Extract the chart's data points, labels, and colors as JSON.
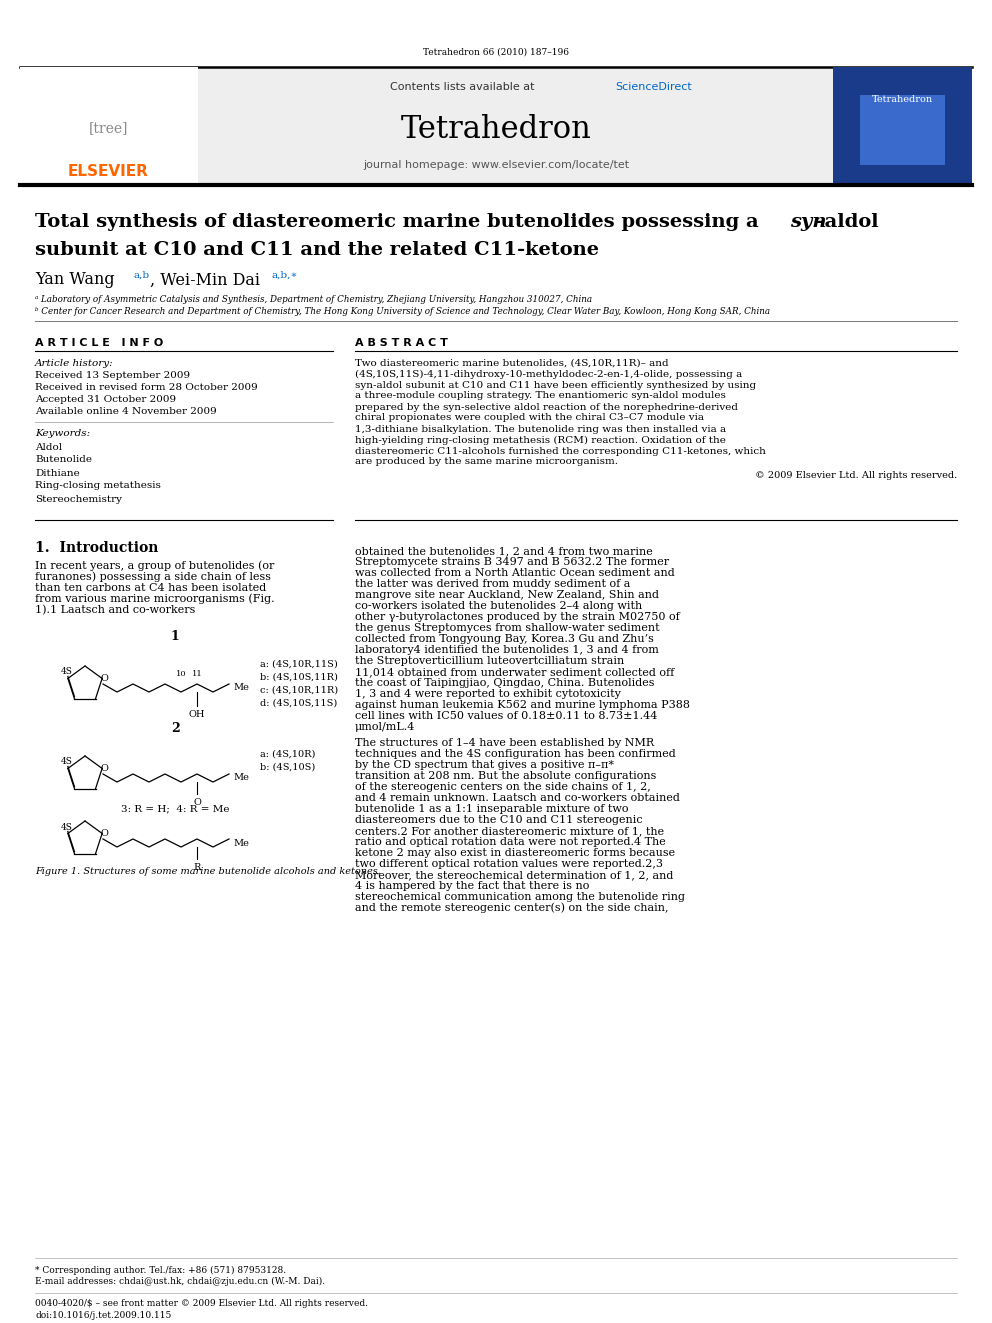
{
  "page_width": 9.92,
  "page_height": 13.23,
  "bg_color": "#ffffff",
  "journal_cite": "Tetrahedron 66 (2010) 187–196",
  "header_bg": "#eeeeee",
  "sciencedirect_color": "#0066cc",
  "journal_name": "Tetrahedron",
  "journal_homepage": "journal homepage: www.elsevier.com/locate/tet",
  "title_line1": "Total synthesis of diastereomeric marine butenolides possessing a ",
  "title_italic": "syn",
  "title_line1b": "–aldol",
  "title_line2": "subunit at C10 and C11 and the related C11-ketone",
  "affil_a": "ᵃ Laboratory of Asymmetric Catalysis and Synthesis, Department of Chemistry, Zhejiang University, Hangzhou 310027, China",
  "affil_b": "ᵇ Center for Cancer Research and Department of Chemistry, The Hong Kong University of Science and Technology, Clear Water Bay, Kowloon, Hong Kong SAR, China",
  "article_info_title": "A R T I C L E   I N F O",
  "article_history_title": "Article history:",
  "received": "Received 13 September 2009",
  "revised": "Received in revised form 28 October 2009",
  "accepted": "Accepted 31 October 2009",
  "available": "Available online 4 November 2009",
  "keywords_title": "Keywords:",
  "keywords": [
    "Aldol",
    "Butenolide",
    "Dithiane",
    "Ring-closing metathesis",
    "Stereochemistry"
  ],
  "abstract_title": "A B S T R A C T",
  "abstract_text": "Two diastereomeric marine butenolides, (4S,10R,11R)– and (4S,10S,11S)-4,11-dihydroxy-10-methyldodec-2-en-1,4-olide, possessing a syn-aldol subunit at C10 and C11 have been efficiently synthesized by using a three-module coupling strategy. The enantiomeric syn-aldol modules prepared by the syn-selective aldol reaction of the norephedrine-derived chiral propionates were coupled with the chiral C3–C7 module via 1,3-dithiane bisalkylation. The butenolide ring was then installed via a high-yielding ring-closing metathesis (RCM) reaction. Oxidation of the diastereomeric C11-alcohols furnished the corresponding C11-ketones, which are produced by the same marine microorganism.",
  "copyright": "© 2009 Elsevier Ltd. All rights reserved.",
  "intro_title": "1.  Introduction",
  "intro_para": "    In recent years, a group of butenolides (or furanones) possessing a side chain of less than ten carbons at C4 has been isolated from various marine microorganisms (Fig. 1).1 Laatsch and co-workers",
  "right_col_para1": "obtained the butenolides 1, 2 and 4 from two marine Streptomycete strains B 3497 and B 5632.2 The former was collected from a North Atlantic Ocean sediment and the latter was derived from muddy sediment of a mangrove site near Auckland, New Zealand, Shin and co-workers isolated the butenolides 2–4 along with other γ-butyrolactones produced by the strain M02750 of the genus Streptomyces from shallow-water sediment collected from Tongyoung Bay, Korea.3 Gu and Zhu’s laboratory4 identified the butenolides 1, 3 and 4 from the Streptoverticillium luteovertcilliatum strain 11,014 obtained from underwater sediment collected off the coast of Taipingjiao, Qingdao, China. Butenolides 1, 3 and 4 were reported to exhibit cytotoxicity against human leukemia K562 and murine lymphoma P388 cell lines with IC50 values of 0.18±0.11 to 8.73±1.44 μmol/mL.4",
  "right_col_para2": "    The structures of 1–4 have been established by NMR techniques and the 4S configuration has been confirmed by the CD spectrum that gives a positive π–π* transition at 208 nm. But the absolute configurations of the stereogenic centers on the side chains of 1, 2, and 4 remain unknown. Laatsch and co-workers obtained butenolide 1 as a 1:1 inseparable mixture of two diastereomers due to the C10 and C11 stereogenic centers.2 For another diastereomeric mixture of 1, the ratio and optical rotation data were not reported.4 The ketone 2 may also exist in diastereomeric forms because two different optical rotation values were reported.2,3 Moreover, the stereochemical determination of 1, 2, and 4 is hampered by the fact that there is no stereochemical communication among the butenolide ring and the remote stereogenic center(s) on the side chain,",
  "fig1_caption": "Figure 1. Structures of some marine butenolide alcohols and ketones.",
  "compound1_labels": [
    "a: (4S,10R,11S)",
    "b: (4S,10S,11R)",
    "c: (4S,10R,11R)",
    "d: (4S,10S,11S)"
  ],
  "compound2_labels": [
    "a: (4S,10R)",
    "b: (4S,10S)"
  ],
  "compound34_label": "3: R = H;  4: R = Me",
  "footnote_star": "* Corresponding author. Tel./fax: +86 (571) 87953128.",
  "footnote_email": "E-mail addresses: chdai@ust.hk, chdai@zju.edu.cn (W.-M. Dai).",
  "bottom_text1": "0040-4020/$ – see front matter © 2009 Elsevier Ltd. All rights reserved.",
  "bottom_text2": "doi:10.1016/j.tet.2009.10.115",
  "elsevier_color": "#ff6600"
}
